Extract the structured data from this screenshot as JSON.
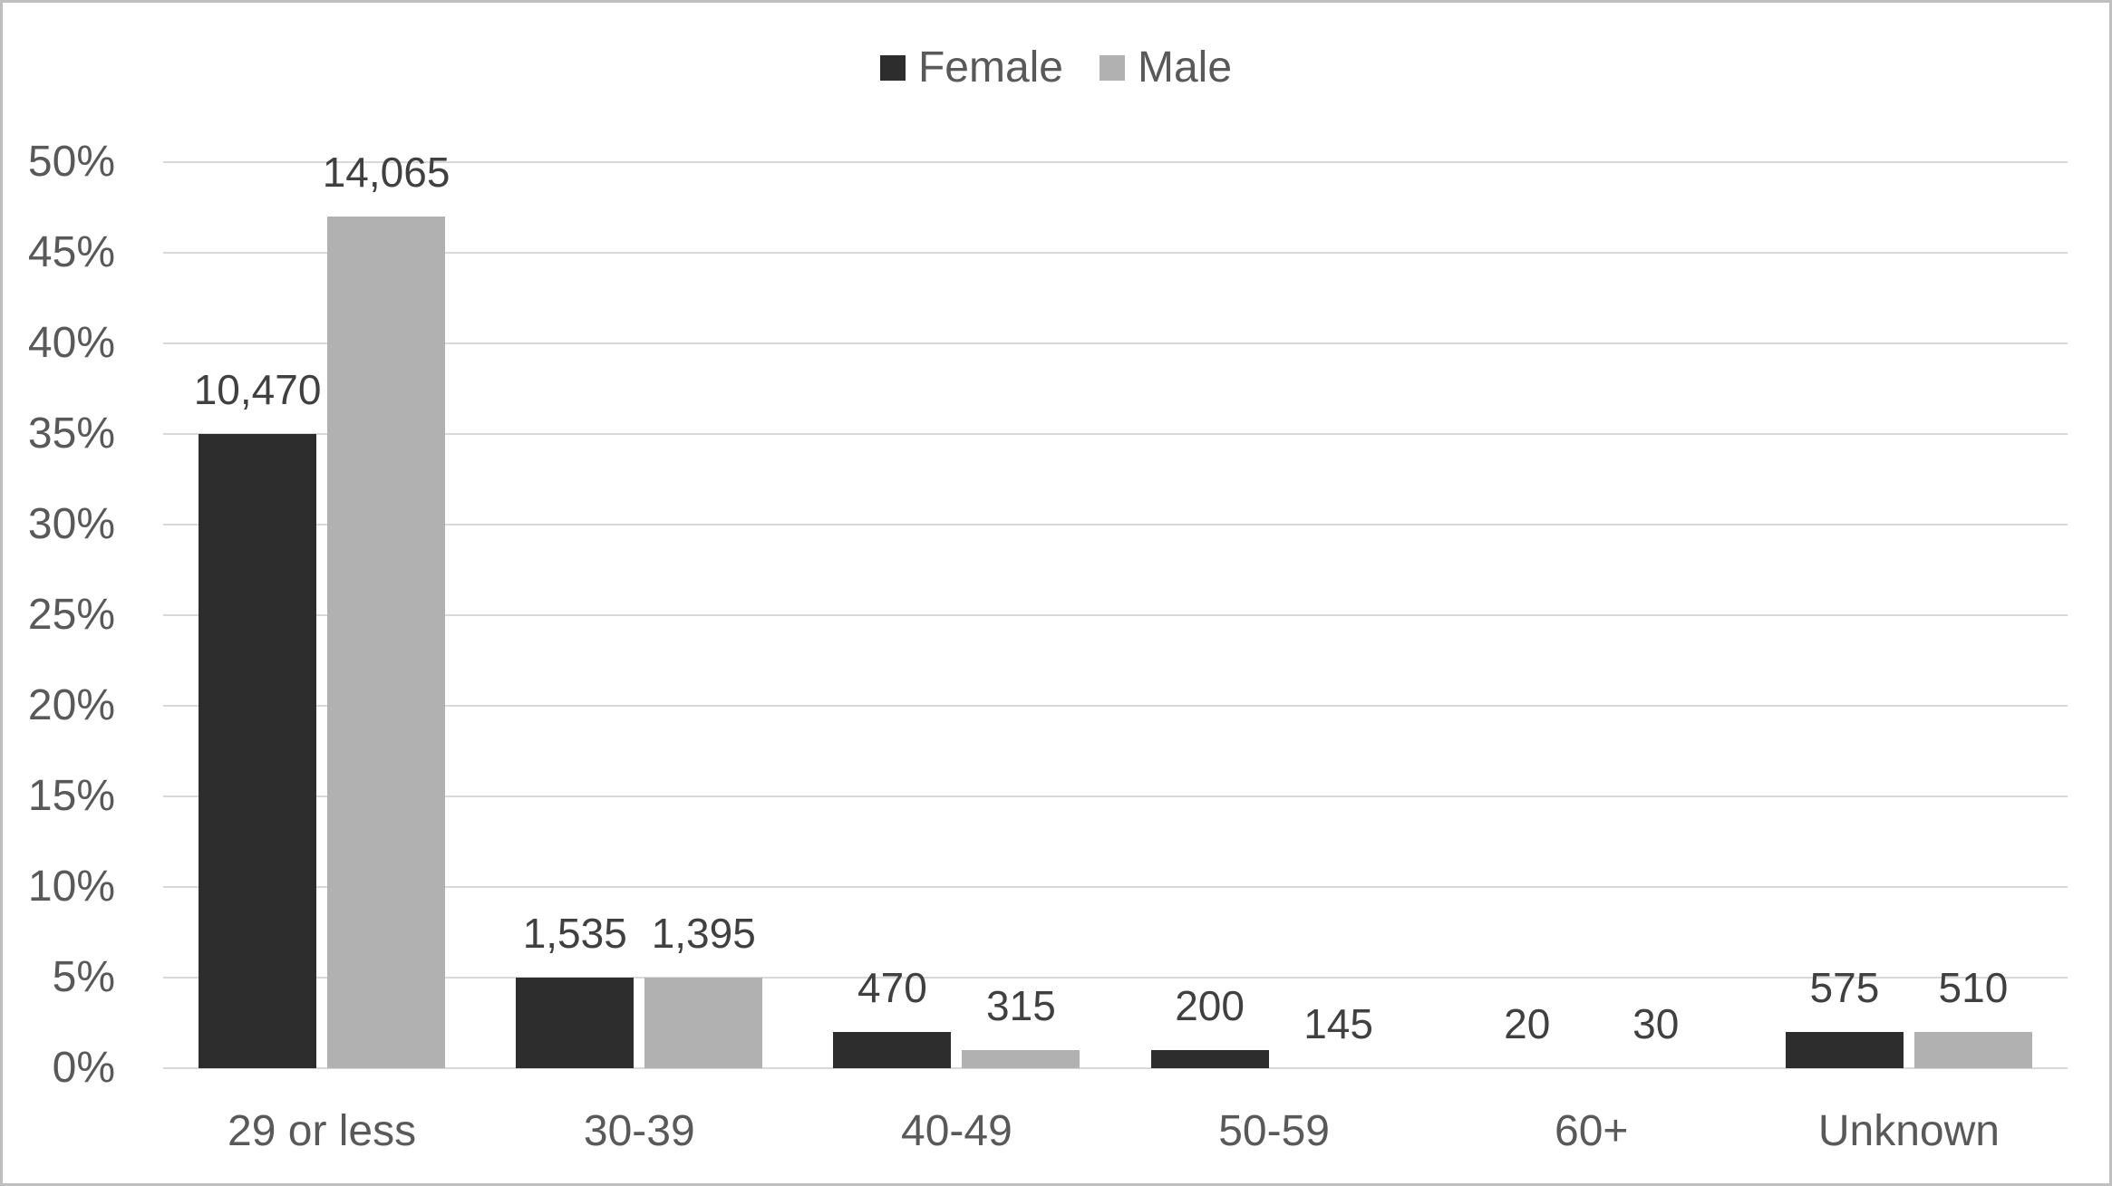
{
  "chart": {
    "background": "#ffffff",
    "border_color": "#bfbfbf",
    "axis_text_color": "#595959",
    "data_label_color": "#404040",
    "gridline_color": "#d9d9d9"
  },
  "legend": {
    "position": "top",
    "items": [
      {
        "label": "Female",
        "color": "#2d2d2d"
      },
      {
        "label": "Male",
        "color": "#b1b1b1"
      }
    ]
  },
  "chart_data": {
    "type": "bar",
    "title": "",
    "xlabel": "",
    "ylabel": "",
    "categories": [
      "29 or less",
      "30-39",
      "40-49",
      "50-59",
      "60+",
      "Unknown"
    ],
    "series": [
      {
        "name": "Female",
        "color": "#2d2d2d",
        "values": [
          10470,
          1535,
          470,
          200,
          20,
          575
        ],
        "value_labels": [
          "10,470",
          "1,535",
          "470",
          "200",
          "20",
          "575"
        ],
        "percent_height": [
          35,
          5,
          2,
          1,
          0,
          2
        ]
      },
      {
        "name": "Male",
        "color": "#b1b1b1",
        "values": [
          14065,
          1395,
          315,
          145,
          30,
          510
        ],
        "value_labels": [
          "14,065",
          "1,395",
          "315",
          "145",
          "30",
          "510"
        ],
        "percent_height": [
          47,
          5,
          1,
          0,
          0,
          2
        ]
      }
    ],
    "y_ticks": [
      "0%",
      "5%",
      "10%",
      "15%",
      "20%",
      "25%",
      "30%",
      "35%",
      "40%",
      "45%",
      "50%"
    ],
    "ylim": [
      0,
      50
    ],
    "y_step": 5,
    "grid": true,
    "legend_position": "top"
  }
}
